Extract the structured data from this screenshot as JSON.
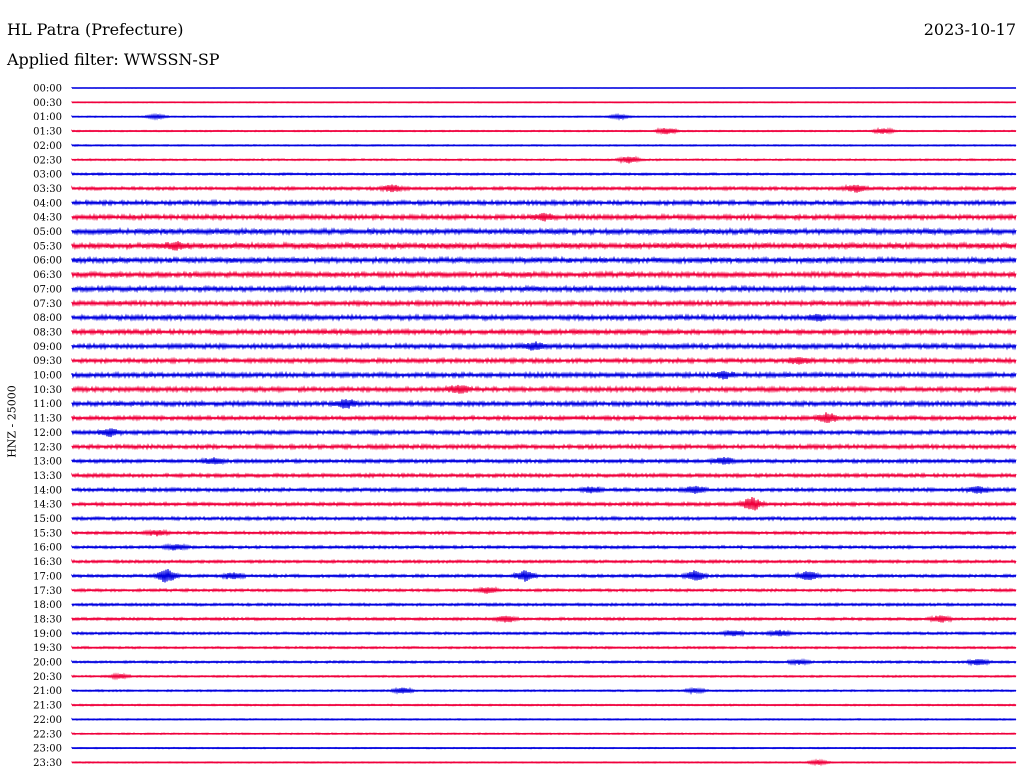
{
  "header": {
    "station": "HL Patra (Prefecture)",
    "date": "2023-10-17",
    "filter": "Applied filter: WWSSN-SP"
  },
  "chart_data": {
    "type": "line",
    "title": "HL Patra (Prefecture)",
    "ylabel": "HNZ - 25000",
    "row_labels": [
      "00:00",
      "00:30",
      "01:00",
      "01:30",
      "02:00",
      "02:30",
      "03:00",
      "03:30",
      "04:00",
      "04:30",
      "05:00",
      "05:30",
      "06:00",
      "06:30",
      "07:00",
      "07:30",
      "08:00",
      "08:30",
      "09:00",
      "09:30",
      "10:00",
      "10:30",
      "11:00",
      "11:30",
      "12:00",
      "12:30",
      "13:00",
      "13:30",
      "14:00",
      "14:30",
      "15:00",
      "15:30",
      "16:00",
      "16:30",
      "17:00",
      "17:30",
      "18:00",
      "18:30",
      "19:00",
      "19:30",
      "20:00",
      "20:30",
      "21:00",
      "21:30",
      "22:00",
      "22:30",
      "23:00",
      "23:30"
    ],
    "colors": [
      "#0000e0",
      "#f0003c"
    ],
    "noise_level": [
      0.3,
      0.6,
      0.7,
      0.8,
      0.8,
      1.0,
      1.2,
      1.8,
      2.4,
      2.6,
      3.0,
      3.2,
      3.0,
      2.8,
      2.8,
      2.6,
      2.7,
      2.6,
      2.6,
      2.4,
      2.6,
      2.6,
      2.6,
      2.2,
      2.2,
      2.3,
      2.0,
      2.0,
      2.0,
      1.9,
      1.8,
      1.6,
      1.6,
      1.6,
      1.6,
      1.5,
      1.5,
      1.5,
      1.4,
      1.2,
      1.2,
      1.0,
      1.0,
      0.9,
      0.8,
      0.8,
      0.7,
      0.7
    ],
    "events": [
      {
        "row": 2,
        "pos": 0.09,
        "amp": 4
      },
      {
        "row": 2,
        "pos": 0.58,
        "amp": 4
      },
      {
        "row": 3,
        "pos": 0.63,
        "amp": 6
      },
      {
        "row": 3,
        "pos": 0.86,
        "amp": 5
      },
      {
        "row": 5,
        "pos": 0.59,
        "amp": 6
      },
      {
        "row": 7,
        "pos": 0.34,
        "amp": 6
      },
      {
        "row": 7,
        "pos": 0.83,
        "amp": 6
      },
      {
        "row": 9,
        "pos": 0.5,
        "amp": 6
      },
      {
        "row": 11,
        "pos": 0.11,
        "amp": 6
      },
      {
        "row": 16,
        "pos": 0.79,
        "amp": 5
      },
      {
        "row": 18,
        "pos": 0.49,
        "amp": 6
      },
      {
        "row": 19,
        "pos": 0.77,
        "amp": 6
      },
      {
        "row": 20,
        "pos": 0.69,
        "amp": 6
      },
      {
        "row": 21,
        "pos": 0.41,
        "amp": 7
      },
      {
        "row": 22,
        "pos": 0.29,
        "amp": 7
      },
      {
        "row": 23,
        "pos": 0.8,
        "amp": 9
      },
      {
        "row": 24,
        "pos": 0.04,
        "amp": 6
      },
      {
        "row": 26,
        "pos": 0.15,
        "amp": 5
      },
      {
        "row": 26,
        "pos": 0.69,
        "amp": 6
      },
      {
        "row": 28,
        "pos": 0.55,
        "amp": 5
      },
      {
        "row": 28,
        "pos": 0.66,
        "amp": 6
      },
      {
        "row": 28,
        "pos": 0.96,
        "amp": 6
      },
      {
        "row": 29,
        "pos": 0.72,
        "amp": 12
      },
      {
        "row": 31,
        "pos": 0.09,
        "amp": 5
      },
      {
        "row": 32,
        "pos": 0.11,
        "amp": 5
      },
      {
        "row": 34,
        "pos": 0.1,
        "amp": 12
      },
      {
        "row": 34,
        "pos": 0.17,
        "amp": 6
      },
      {
        "row": 34,
        "pos": 0.48,
        "amp": 9
      },
      {
        "row": 34,
        "pos": 0.66,
        "amp": 9
      },
      {
        "row": 34,
        "pos": 0.78,
        "amp": 8
      },
      {
        "row": 35,
        "pos": 0.44,
        "amp": 5
      },
      {
        "row": 37,
        "pos": 0.46,
        "amp": 6
      },
      {
        "row": 37,
        "pos": 0.92,
        "amp": 6
      },
      {
        "row": 38,
        "pos": 0.7,
        "amp": 5
      },
      {
        "row": 38,
        "pos": 0.75,
        "amp": 5
      },
      {
        "row": 40,
        "pos": 0.77,
        "amp": 4
      },
      {
        "row": 40,
        "pos": 0.96,
        "amp": 6
      },
      {
        "row": 41,
        "pos": 0.05,
        "amp": 4
      },
      {
        "row": 42,
        "pos": 0.35,
        "amp": 5
      },
      {
        "row": 42,
        "pos": 0.66,
        "amp": 4
      },
      {
        "row": 47,
        "pos": 0.79,
        "amp": 4
      }
    ]
  }
}
